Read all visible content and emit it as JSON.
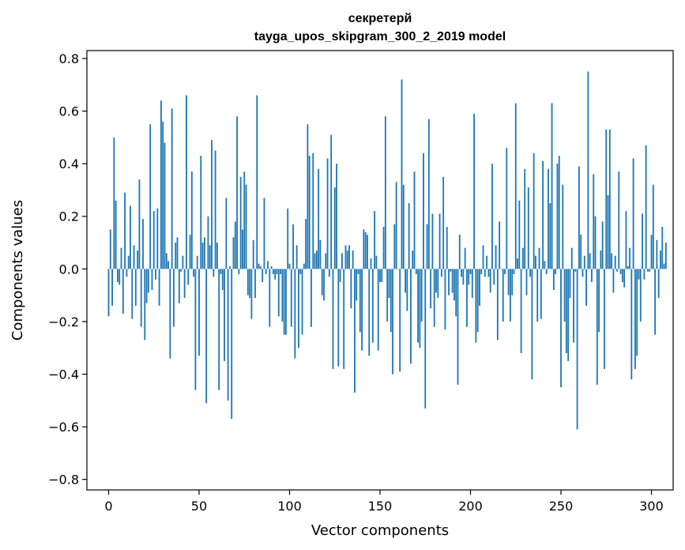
{
  "chart_data": {
    "type": "bar",
    "title": "секретерй",
    "subtitle": "tayga_upos_skipgram_300_2_2019 model",
    "xlabel": "Vector components",
    "ylabel": "Components values",
    "xlim": [
      -12,
      312
    ],
    "ylim": [
      -0.84,
      0.83
    ],
    "xticks": [
      0,
      50,
      100,
      150,
      200,
      250,
      300
    ],
    "xtick_labels": [
      "0",
      "50",
      "100",
      "150",
      "200",
      "250",
      "300"
    ],
    "yticks": [
      0.8,
      0.6,
      0.4,
      0.2,
      0.0,
      -0.2,
      -0.4,
      -0.6,
      -0.8
    ],
    "ytick_labels": [
      "0.8",
      "0.6",
      "0.4",
      "0.2",
      "0.0",
      "−0.2",
      "−0.4",
      "−0.6",
      "−0.8"
    ],
    "grid": false,
    "legend": "none",
    "bar_color": "#1f77b4",
    "series": [
      {
        "values": [
          -0.18,
          0.15,
          -0.14,
          0.5,
          0.26,
          -0.05,
          -0.06,
          0.08,
          -0.17,
          0.29,
          -0.03,
          0.05,
          0.24,
          -0.19,
          0.09,
          -0.14,
          0.07,
          0.34,
          -0.22,
          0.19,
          -0.27,
          -0.13,
          -0.09,
          0.55,
          -0.08,
          0.22,
          -0.04,
          0.23,
          -0.14,
          0.64,
          0.56,
          0.48,
          0.06,
          0.03,
          -0.34,
          0.61,
          -0.22,
          0.1,
          0.12,
          -0.13,
          -0.01,
          0.05,
          -0.11,
          0.66,
          -0.06,
          0.13,
          0.37,
          -0.03,
          -0.46,
          0.05,
          -0.33,
          0.43,
          0.1,
          0.12,
          -0.51,
          0.2,
          0.09,
          0.49,
          -0.03,
          0.45,
          0.1,
          -0.46,
          -0.02,
          -0.08,
          -0.35,
          0.27,
          -0.5,
          0.01,
          -0.57,
          0.12,
          0.18,
          0.58,
          -0.02,
          0.35,
          0.15,
          0.37,
          0.32,
          -0.1,
          -0.11,
          -0.19,
          0.11,
          -0.11,
          0.66,
          0.02,
          0.01,
          -0.05,
          0.27,
          -0.02,
          0.03,
          -0.22,
          0.01,
          -0.02,
          -0.04,
          -0.02,
          -0.18,
          -0.02,
          -0.2,
          -0.25,
          -0.25,
          0.23,
          0.02,
          -0.22,
          0.17,
          -0.34,
          0.09,
          -0.3,
          -0.02,
          -0.25,
          0.02,
          0.19,
          0.55,
          0.43,
          -0.22,
          0.44,
          0.06,
          0.07,
          0.38,
          0.11,
          -0.1,
          -0.12,
          0.06,
          0.42,
          -0.03,
          0.51,
          -0.38,
          0.31,
          0.4,
          -0.37,
          -0.05,
          0.06,
          -0.38,
          0.09,
          0.07,
          0.09,
          -0.15,
          0.07,
          -0.47,
          -0.12,
          -0.02,
          -0.24,
          -0.31,
          0.15,
          0.14,
          0.13,
          -0.33,
          0.04,
          -0.28,
          0.22,
          0.05,
          -0.31,
          -0.05,
          -0.05,
          0.16,
          0.58,
          -0.2,
          -0.11,
          -0.24,
          -0.4,
          0.17,
          0.33,
          0.0,
          -0.39,
          0.72,
          0.32,
          -0.09,
          -0.16,
          0.25,
          -0.36,
          0.07,
          0.37,
          -0.02,
          -0.28,
          -0.3,
          -0.2,
          0.44,
          -0.53,
          0.17,
          0.57,
          -0.15,
          0.21,
          -0.22,
          -0.09,
          -0.11,
          0.21,
          -0.03,
          0.35,
          -0.23,
          0.16,
          -0.1,
          -0.01,
          -0.09,
          -0.12,
          -0.18,
          -0.44,
          0.13,
          -0.03,
          -0.06,
          0.08,
          -0.22,
          -0.06,
          -0.02,
          -0.11,
          0.59,
          -0.28,
          -0.24,
          -0.14,
          -0.02,
          0.09,
          -0.03,
          0.05,
          -0.03,
          -0.09,
          0.4,
          -0.06,
          0.09,
          -0.27,
          0.18,
          0.0,
          -0.2,
          -0.02,
          0.46,
          -0.1,
          -0.2,
          -0.1,
          -0.02,
          0.63,
          0.04,
          0.26,
          -0.32,
          0.08,
          0.38,
          -0.1,
          0.31,
          -0.03,
          -0.42,
          0.44,
          0.05,
          -0.2,
          0.08,
          -0.19,
          0.41,
          0.03,
          -0.02,
          0.38,
          0.25,
          0.63,
          -0.08,
          -0.02,
          0.4,
          0.43,
          -0.45,
          0.32,
          -0.2,
          -0.32,
          -0.35,
          -0.11,
          0.08,
          -0.28,
          -0.01,
          -0.61,
          0.39,
          0.13,
          -0.03,
          0.05,
          -0.14,
          0.75,
          0.06,
          -0.05,
          0.36,
          0.2,
          -0.44,
          -0.24,
          0.07,
          0.18,
          -0.38,
          0.53,
          0.28,
          0.53,
          0.06,
          -0.09,
          0.05,
          -0.01,
          0.37,
          -0.02,
          -0.05,
          -0.07,
          0.22,
          0.01,
          0.08,
          -0.42,
          0.42,
          -0.38,
          -0.33,
          -0.04,
          -0.2,
          0.21,
          -0.04,
          0.47,
          -0.01,
          -0.01,
          0.13,
          0.32,
          -0.25,
          0.11,
          -0.11,
          0.07,
          0.16,
          0.02,
          0.1
        ]
      }
    ]
  }
}
